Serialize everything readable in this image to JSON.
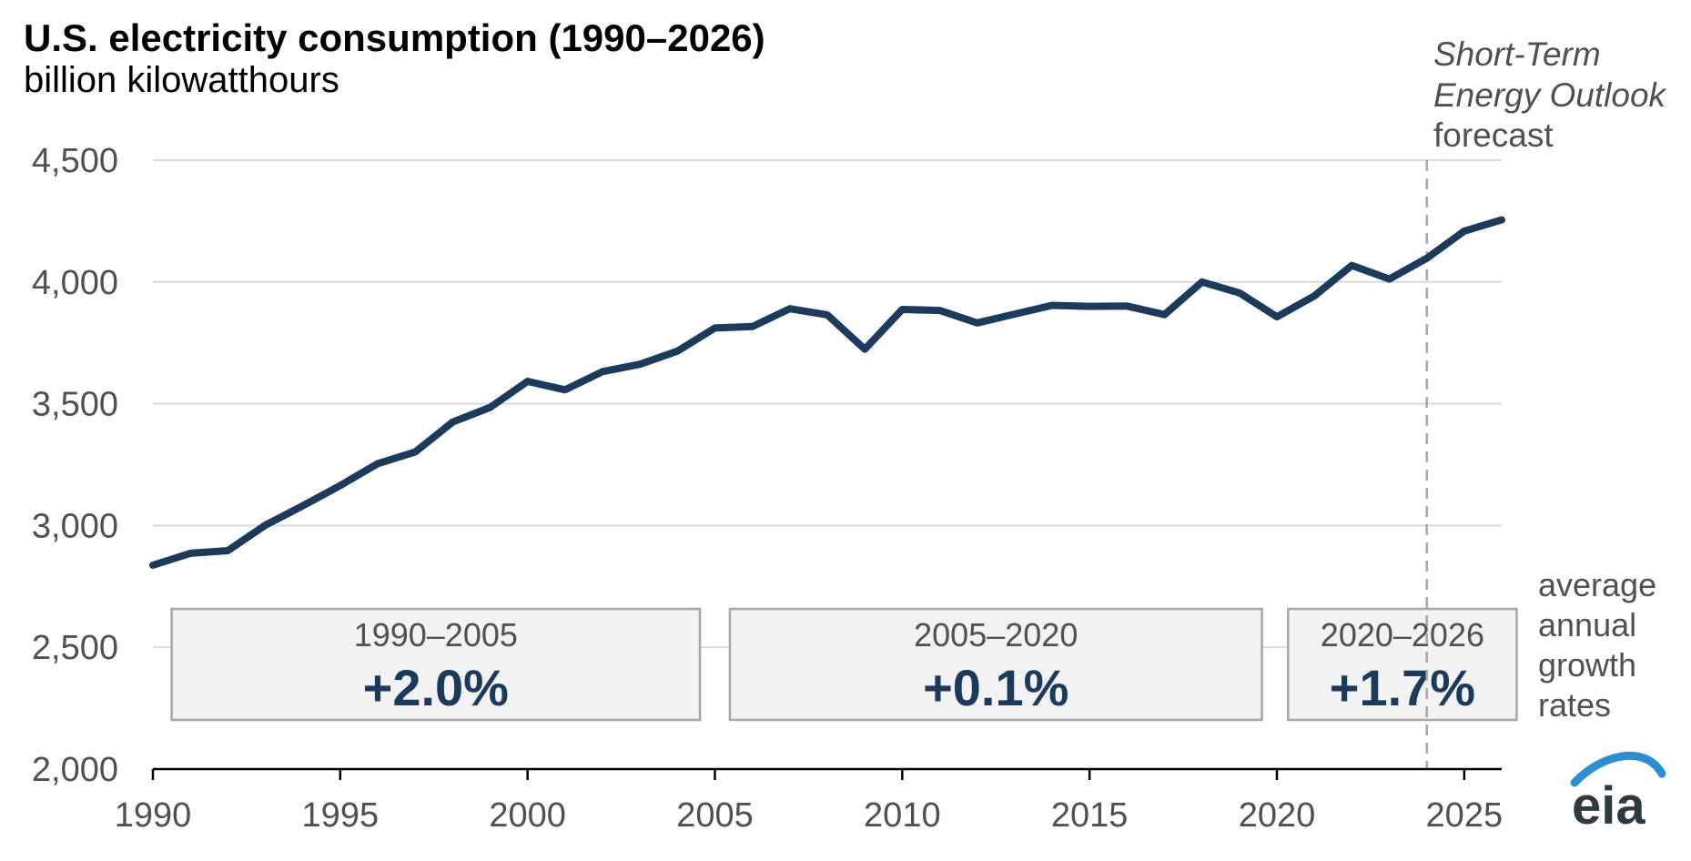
{
  "chart_data": {
    "type": "line",
    "title": "U.S. electricity consumption (1990–2026)",
    "subtitle": "billion kilowatthours",
    "xlim": [
      1990,
      2026
    ],
    "ylim": [
      2000,
      4500
    ],
    "x_ticks": [
      "1990",
      "1995",
      "2000",
      "2005",
      "2010",
      "2015",
      "2020",
      "2025"
    ],
    "y_ticks": [
      "2,000",
      "2,500",
      "3,000",
      "3,500",
      "4,000",
      "4,500"
    ],
    "grid": true,
    "line_color": "#1b3a5c",
    "series": [
      {
        "x": [
          1990,
          1991,
          1992,
          1993,
          1994,
          1995,
          1996,
          1997,
          1998,
          1999,
          2000,
          2001,
          2002,
          2003,
          2004,
          2005,
          2006,
          2007,
          2008,
          2009,
          2010,
          2011,
          2012,
          2013,
          2014,
          2015,
          2016,
          2017,
          2018,
          2019,
          2020,
          2021,
          2022,
          2023,
          2024,
          2025,
          2026
        ],
        "values": [
          2837,
          2886,
          2897,
          3001,
          3081,
          3164,
          3254,
          3302,
          3425,
          3485,
          3592,
          3557,
          3632,
          3662,
          3716,
          3811,
          3817,
          3890,
          3865,
          3724,
          3887,
          3883,
          3832,
          3868,
          3904,
          3900,
          3901,
          3866,
          4000,
          3955,
          3857,
          3943,
          4068,
          4012,
          4097,
          4209,
          4255
        ]
      }
    ],
    "forecast": {
      "start_x": 2024,
      "label_lines": [
        "Short-Term",
        "Energy Outlook"
      ],
      "label_suffix": "forecast"
    },
    "growth_rates": [
      {
        "period": "1990–2005",
        "rate": "+2.0%",
        "x_from": 1990.5,
        "x_to": 2004.6
      },
      {
        "period": "2005–2020",
        "rate": "+0.1%",
        "x_from": 2005.4,
        "x_to": 2019.6
      },
      {
        "period": "2020–2026",
        "rate": "+1.7%",
        "x_from": 2020.3,
        "x_to": 2026.4
      }
    ],
    "growth_note": [
      "average",
      "annual",
      "growth",
      "rates"
    ]
  },
  "logo": {
    "text": "eia"
  },
  "colors": {
    "grid": "#d9d9d9",
    "axis": "#000000",
    "box_fill": "#f2f2f2",
    "box_border": "#a6a6a6",
    "forecast_line": "#a6a6a6",
    "logo_arc": "#2e8fd0"
  }
}
